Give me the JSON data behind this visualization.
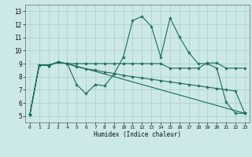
{
  "title": "",
  "xlabel": "Humidex (Indice chaleur)",
  "xlim": [
    -0.5,
    23.5
  ],
  "ylim": [
    4.5,
    13.5
  ],
  "yticks": [
    5,
    6,
    7,
    8,
    9,
    10,
    11,
    12,
    13
  ],
  "xticks": [
    0,
    1,
    2,
    3,
    4,
    5,
    6,
    7,
    8,
    9,
    10,
    11,
    12,
    13,
    14,
    15,
    16,
    17,
    18,
    19,
    20,
    21,
    22,
    23
  ],
  "xtick_labels": [
    "0",
    "1",
    "2",
    "3",
    "4",
    "5",
    "6",
    "7",
    "8",
    "9",
    "10",
    "11",
    "12",
    "13",
    "14",
    "15",
    "16",
    "17",
    "18",
    "19",
    "20",
    "21",
    "22",
    "23"
  ],
  "line_color": "#1a6b5a",
  "bg_color": "#cce8e8",
  "grid_color": "#aacccc",
  "lines": [
    {
      "x": [
        0,
        1,
        2,
        3,
        4,
        5,
        6,
        7,
        8,
        9,
        10,
        11,
        12,
        13,
        14,
        15,
        16,
        17,
        18,
        19,
        20,
        21,
        22,
        23
      ],
      "y": [
        5.1,
        8.9,
        8.9,
        9.1,
        9.0,
        7.4,
        6.7,
        7.4,
        7.3,
        8.2,
        9.5,
        12.3,
        12.6,
        11.85,
        9.5,
        12.5,
        11.05,
        9.85,
        9.0,
        9.0,
        8.65,
        6.05,
        5.2,
        5.2
      ]
    },
    {
      "x": [
        0,
        1,
        2,
        3,
        4,
        23
      ],
      "y": [
        5.1,
        8.9,
        8.85,
        9.1,
        9.0,
        5.2
      ]
    },
    {
      "x": [
        0,
        1,
        2,
        3,
        4,
        5,
        6,
        7,
        8,
        9,
        10,
        11,
        12,
        13,
        14,
        15,
        16,
        17,
        18,
        19,
        20,
        21,
        22,
        23
      ],
      "y": [
        5.1,
        8.9,
        8.85,
        9.1,
        9.0,
        8.75,
        8.6,
        8.5,
        8.35,
        8.25,
        8.1,
        8.0,
        7.9,
        7.8,
        7.7,
        7.6,
        7.5,
        7.4,
        7.3,
        7.2,
        7.1,
        7.0,
        6.9,
        5.2
      ]
    },
    {
      "x": [
        0,
        1,
        2,
        3,
        4,
        5,
        6,
        7,
        8,
        9,
        10,
        11,
        12,
        13,
        14,
        15,
        16,
        17,
        18,
        19,
        20,
        21,
        22,
        23
      ],
      "y": [
        5.1,
        8.9,
        8.85,
        9.1,
        9.0,
        9.0,
        9.0,
        9.0,
        9.0,
        9.0,
        9.0,
        9.0,
        9.0,
        9.0,
        9.0,
        8.65,
        8.65,
        8.65,
        8.65,
        9.05,
        9.05,
        8.65,
        8.65,
        8.65
      ]
    }
  ]
}
